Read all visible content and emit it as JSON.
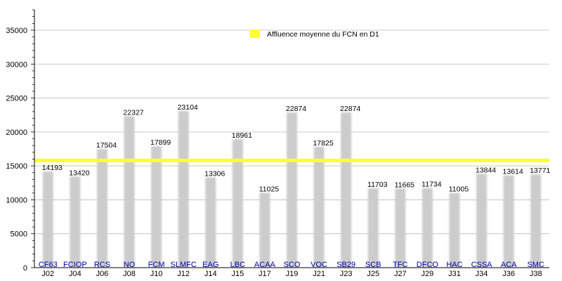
{
  "chart_data": {
    "type": "bar",
    "categories": [
      "CF63",
      "FCIOP",
      "RCS",
      "NO",
      "FCM",
      "SLMFC",
      "EAG",
      "LBC",
      "ACAA",
      "SCO",
      "VOC",
      "SB29",
      "SCB",
      "TFC",
      "DFCO",
      "HAC",
      "CSSA",
      "ACA",
      "SMC"
    ],
    "rounds": [
      "J02",
      "J04",
      "J06",
      "J08",
      "J10",
      "J12",
      "J14",
      "J15",
      "J17",
      "J19",
      "J21",
      "J23",
      "J25",
      "J27",
      "J29",
      "J31",
      "J34",
      "J36",
      "J38"
    ],
    "values": [
      14193,
      13420,
      17504,
      22327,
      17899,
      23104,
      13306,
      18961,
      11025,
      22874,
      17825,
      22874,
      11703,
      11665,
      11734,
      11005,
      13844,
      13614,
      13771
    ],
    "value_labels": [
      "14193",
      "13420",
      "17504",
      "22327",
      "17899",
      "23104",
      "13306",
      "18961",
      "11025",
      "22874",
      "17825",
      "22874",
      "11703",
      "11665",
      "11734",
      "11005",
      "13844",
      "13614",
      "13771"
    ],
    "average": 15800,
    "ylim": [
      0,
      38000
    ],
    "yticks": [
      0,
      5000,
      10000,
      15000,
      20000,
      25000,
      30000,
      35000
    ],
    "ytick_labels": [
      "0",
      "5000",
      "10000",
      "15000",
      "20000",
      "25000",
      "30000",
      "35000"
    ],
    "legend": {
      "label": "Affluence moyenne du FCN en D1",
      "position": "top-center"
    },
    "grid": true,
    "colors": {
      "bar": "#cccccc",
      "average_line": "#ffff33",
      "grid": "#bbbbbb",
      "axis": "#000000",
      "category_link": "#0000aa"
    }
  }
}
